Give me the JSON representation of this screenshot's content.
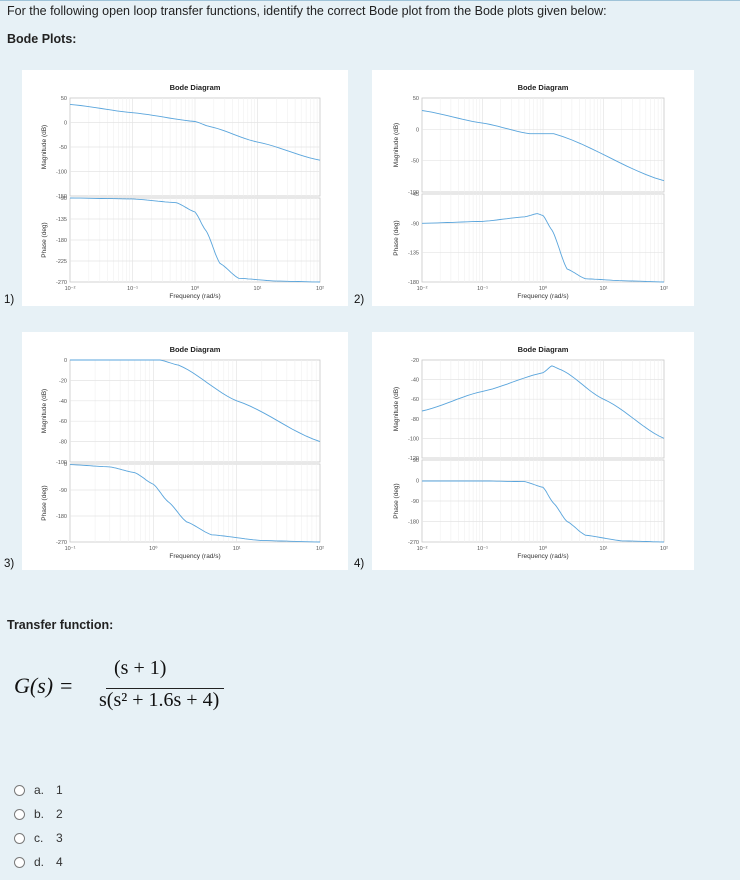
{
  "question": "For the following open loop transfer functions, identify the correct Bode plot from the Bode plots given below:",
  "bode_plots_heading": "Bode Plots:",
  "transfer_function_heading": "Transfer function:",
  "transfer_function": {
    "lhs": "G(s) =",
    "numerator": "(s + 1)",
    "denominator": "s(s² + 1.6s + 4)"
  },
  "options": [
    {
      "letter": "a.",
      "value": "1"
    },
    {
      "letter": "b.",
      "value": "2"
    },
    {
      "letter": "c.",
      "value": "3"
    },
    {
      "letter": "d.",
      "value": "4"
    }
  ],
  "plot_numbers": [
    "1)",
    "2)",
    "3)",
    "4)"
  ],
  "chart_data": [
    {
      "type": "line",
      "title": "Bode Diagram",
      "xlabel": "Frequency (rad/s)",
      "xscale": "log",
      "x_ticks": [
        "10⁻²",
        "10⁻¹",
        "10⁰",
        "10¹",
        "10²"
      ],
      "xlim": [
        0.01,
        100
      ],
      "magnitude": {
        "ylabel": "Magnitude (dB)",
        "ylim": [
          -150,
          50
        ],
        "yticks": [
          "50",
          "0",
          "-50",
          "-100",
          "-150"
        ],
        "x": [
          0.01,
          0.1,
          1,
          1.7,
          10,
          100
        ],
        "y": [
          37,
          20,
          2,
          -8,
          -40,
          -77
        ]
      },
      "phase": {
        "ylabel": "Phase (deg)",
        "ylim": [
          -270,
          -90
        ],
        "yticks": [
          "-90",
          "-135",
          "-180",
          "-225",
          "-270"
        ],
        "x": [
          0.01,
          0.1,
          0.5,
          1,
          1.5,
          2.5,
          5,
          20,
          100
        ],
        "y": [
          -90,
          -92,
          -100,
          -120,
          -160,
          -230,
          -262,
          -268,
          -270
        ]
      }
    },
    {
      "type": "line",
      "title": "Bode Diagram",
      "xlabel": "Frequency (rad/s)",
      "xscale": "log",
      "x_ticks": [
        "10⁻²",
        "10⁻¹",
        "10⁰",
        "10¹",
        "10²"
      ],
      "xlim": [
        0.01,
        100
      ],
      "magnitude": {
        "ylabel": "Magnitude (dB)",
        "ylim": [
          -100,
          50
        ],
        "yticks": [
          "50",
          "0",
          "-50",
          "-100"
        ],
        "x": [
          0.01,
          0.1,
          0.6,
          1.5,
          100
        ],
        "y": [
          30,
          10,
          -7,
          -7,
          -82
        ]
      },
      "phase": {
        "ylabel": "Phase (deg)",
        "ylim": [
          -180,
          -45
        ],
        "yticks": [
          "-45",
          "-90",
          "-135",
          "-180"
        ],
        "x": [
          0.01,
          0.1,
          0.5,
          0.8,
          1,
          1.4,
          2.5,
          5,
          20,
          100
        ],
        "y": [
          -90,
          -87,
          -80,
          -75,
          -78,
          -100,
          -160,
          -175,
          -178,
          -180
        ]
      }
    },
    {
      "type": "line",
      "title": "Bode Diagram",
      "xlabel": "Frequency (rad/s)",
      "xscale": "log",
      "x_ticks": [
        "10⁻¹",
        "10⁰",
        "10¹",
        "10²"
      ],
      "xlim": [
        0.1,
        100
      ],
      "magnitude": {
        "ylabel": "Magnitude (dB)",
        "ylim": [
          -100,
          0
        ],
        "yticks": [
          "0",
          "-20",
          "-40",
          "-60",
          "-80",
          "-100"
        ],
        "x": [
          0.1,
          0.5,
          1.2,
          2,
          10,
          100
        ],
        "y": [
          0,
          0,
          0,
          -5,
          -40,
          -80
        ]
      },
      "phase": {
        "ylabel": "Phase (deg)",
        "ylim": [
          -270,
          0
        ],
        "yticks": [
          "0",
          "-90",
          "-180",
          "-270"
        ],
        "x": [
          0.1,
          0.3,
          0.6,
          1,
          1.5,
          2.5,
          5,
          20,
          100
        ],
        "y": [
          -2,
          -10,
          -30,
          -70,
          -130,
          -200,
          -245,
          -265,
          -270
        ]
      }
    },
    {
      "type": "line",
      "title": "Bode Diagram",
      "xlabel": "Frequency (rad/s)",
      "xscale": "log",
      "x_ticks": [
        "10⁻²",
        "10⁻¹",
        "10⁰",
        "10¹",
        "10²"
      ],
      "xlim": [
        0.01,
        100
      ],
      "magnitude": {
        "ylabel": "Magnitude (dB)",
        "ylim": [
          -120,
          -20
        ],
        "yticks": [
          "-20",
          "-40",
          "-60",
          "-80",
          "-100",
          "-120"
        ],
        "x": [
          0.01,
          0.1,
          1,
          1.4,
          2,
          10,
          100
        ],
        "y": [
          -72,
          -52,
          -33,
          -26,
          -30,
          -60,
          -100
        ]
      },
      "phase": {
        "ylabel": "Phase (deg)",
        "ylim": [
          -270,
          90
        ],
        "yticks": [
          "90",
          "0",
          "-90",
          "-180",
          "-270"
        ],
        "x": [
          0.01,
          0.1,
          0.5,
          1,
          1.5,
          2.5,
          5,
          20,
          100
        ],
        "y": [
          -2,
          -2,
          -5,
          -30,
          -100,
          -180,
          -240,
          -265,
          -270
        ]
      }
    }
  ]
}
